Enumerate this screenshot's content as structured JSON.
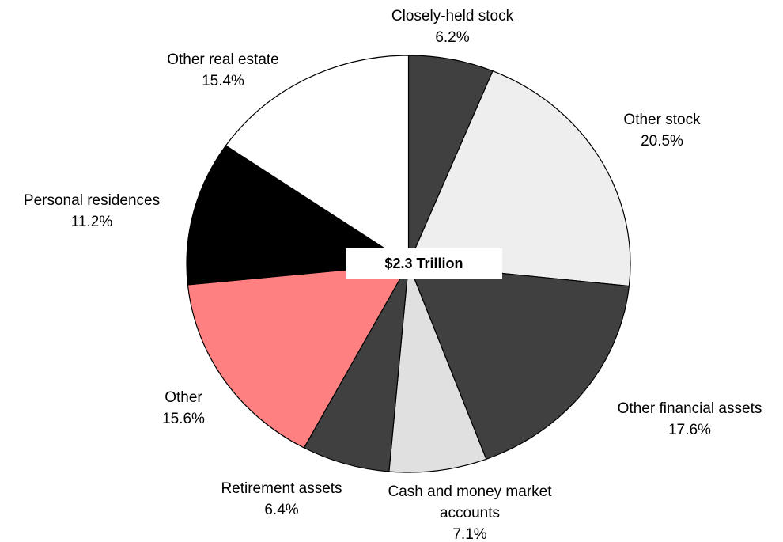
{
  "chart_data": {
    "type": "pie",
    "center_label": "$2.3 Trillion",
    "categories": [
      "Closely-held stock",
      "Other stock",
      "Other financial assets",
      "Cash and money market accounts",
      "Retirement assets",
      "Other",
      "Personal residences",
      "Other real estate"
    ],
    "values": [
      6.2,
      20.5,
      17.6,
      7.1,
      6.4,
      15.6,
      11.2,
      15.4
    ],
    "value_labels": [
      "6.2%",
      "20.5%",
      "17.6%",
      "7.1%",
      "6.4%",
      "15.6%",
      "11.2%",
      "15.4%"
    ],
    "colors": [
      "#404040",
      "#eeeeee",
      "#404040",
      "#e0e0e0",
      "#404040",
      "#ff8080",
      "#000000",
      "#ffffff"
    ]
  }
}
